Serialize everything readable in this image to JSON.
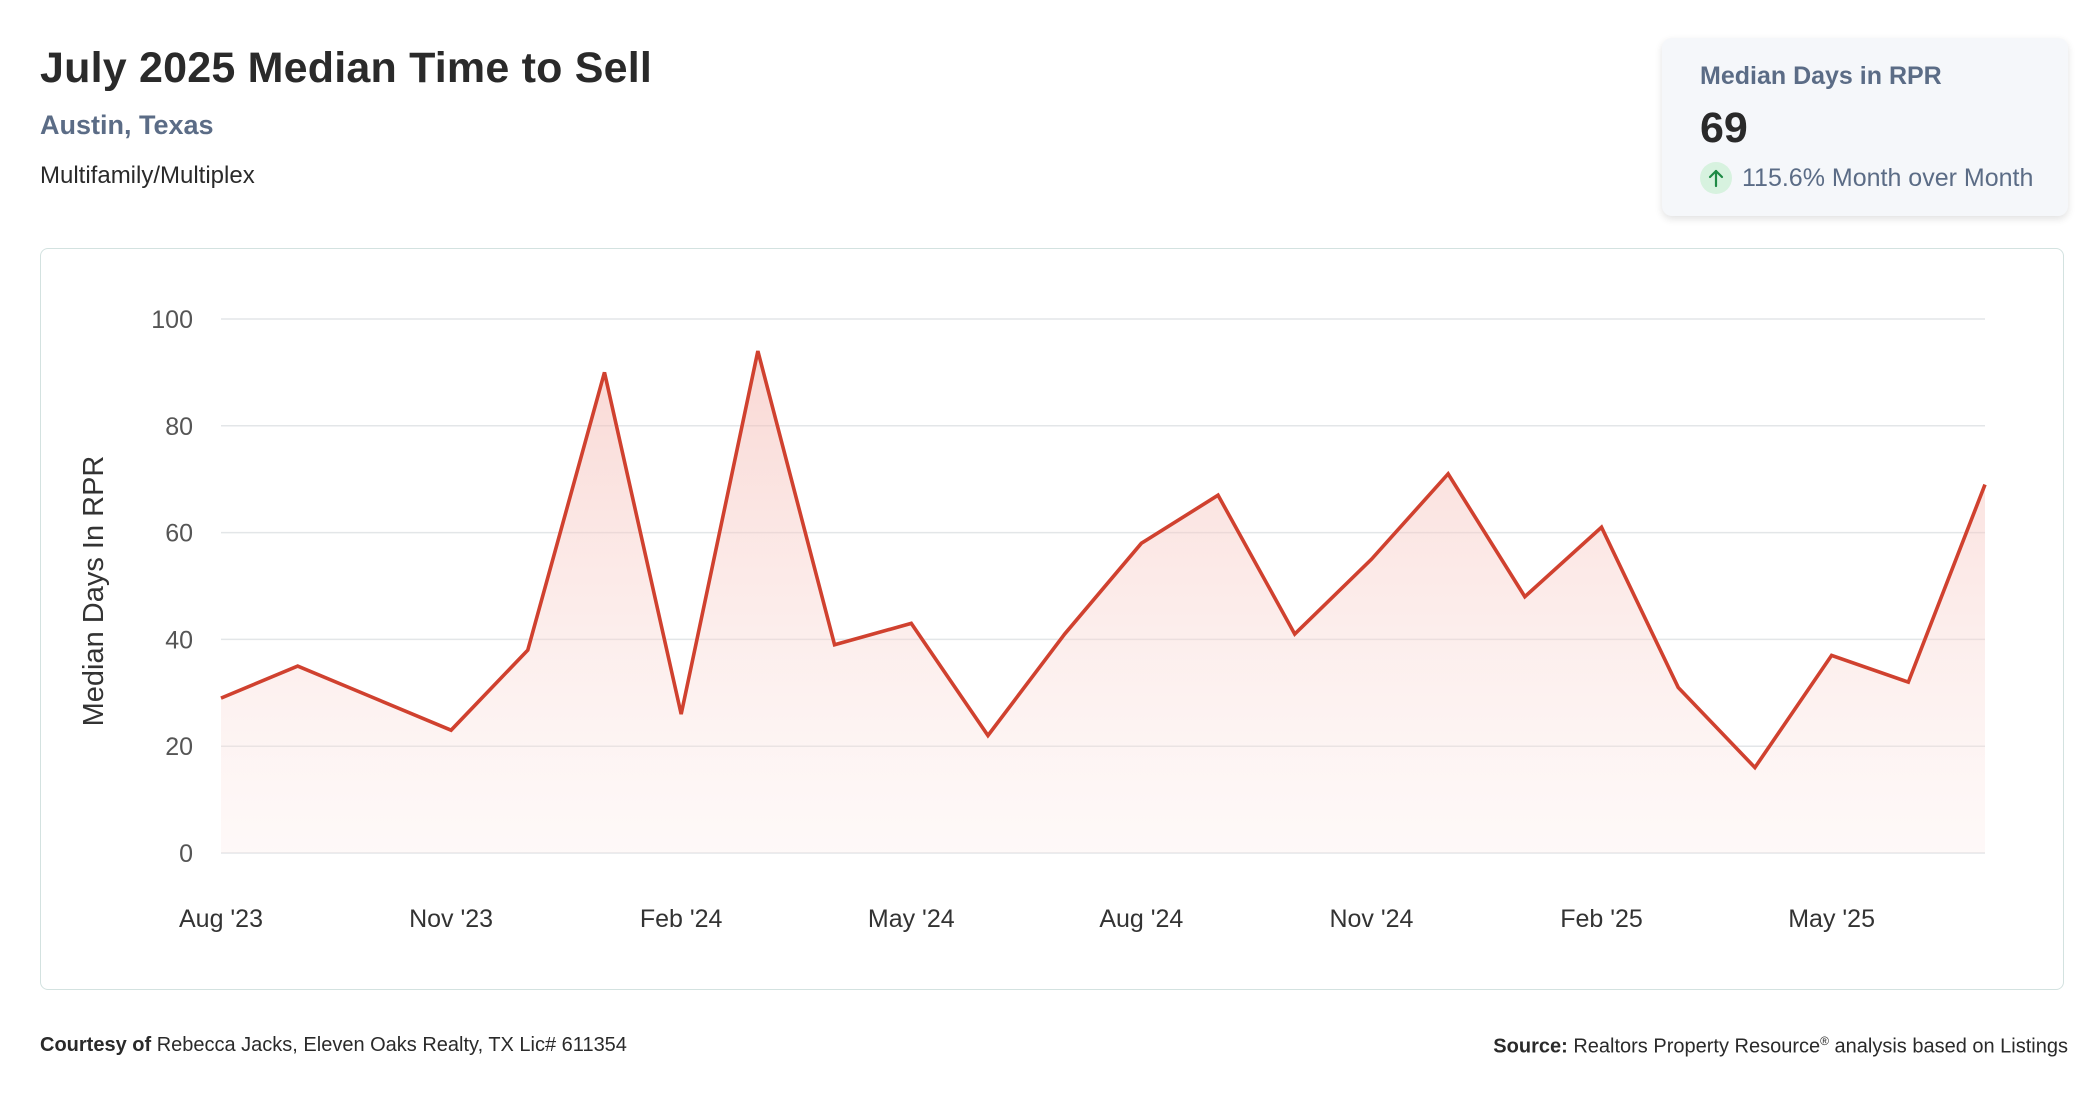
{
  "header": {
    "title": "July 2025 Median Time to Sell",
    "location": "Austin, Texas",
    "property_type": "Multifamily/Multiplex"
  },
  "stat_card": {
    "label": "Median Days in RPR",
    "value": "69",
    "change": "115.6% Month over Month",
    "change_direction_icon": "arrow-up-icon",
    "accent_color": "#1e8a45",
    "badge_color": "#d7f2df"
  },
  "footer": {
    "courtesy_label": "Courtesy of",
    "courtesy_text": "Rebecca Jacks, Eleven Oaks Realty, TX Lic# 611354",
    "source_label": "Source:",
    "source_name": "Realtors Property Resource",
    "source_mark": "®",
    "source_text": "analysis based on Listings"
  },
  "chart_data": {
    "type": "area",
    "ylabel": "Median Days In RPR",
    "xlabel": "",
    "ylim": [
      0,
      100
    ],
    "yticks": [
      0,
      20,
      40,
      60,
      80,
      100
    ],
    "grid": true,
    "line_color": "#d0412f",
    "fill_color": "#f6c9c4",
    "x_tick_labels": [
      "Aug '23",
      "Nov '23",
      "Feb '24",
      "May '24",
      "Aug '24",
      "Nov '24",
      "Feb '25",
      "May '25"
    ],
    "x_tick_indices": [
      0,
      3,
      6,
      9,
      12,
      15,
      18,
      21
    ],
    "x": [
      "2023-08",
      "2023-09",
      "2023-10",
      "2023-11",
      "2023-12",
      "2024-01",
      "2024-02",
      "2024-03",
      "2024-04",
      "2024-05",
      "2024-06",
      "2024-07",
      "2024-08",
      "2024-09",
      "2024-10",
      "2024-11",
      "2024-12",
      "2025-01",
      "2025-02",
      "2025-03",
      "2025-04",
      "2025-05",
      "2025-06",
      "2025-07"
    ],
    "values": [
      29,
      35,
      29,
      23,
      38,
      90,
      26,
      94,
      39,
      43,
      22,
      41,
      58,
      67,
      41,
      55,
      71,
      48,
      61,
      31,
      16,
      37,
      32,
      69
    ]
  }
}
